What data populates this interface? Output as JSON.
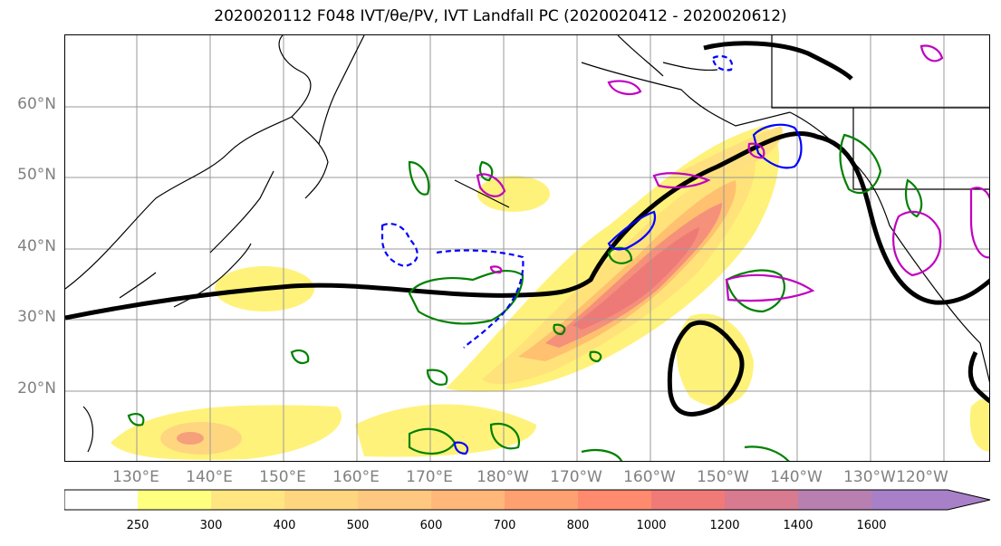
{
  "title": "2020020112 F048 IVT/θe/PV, IVT Landfall PC (2020020412 - 2020020612)",
  "lat_labels": [
    "60°N",
    "50°N",
    "40°N",
    "30°N",
    "20°N"
  ],
  "lon_labels": [
    "130°E",
    "140°E",
    "150°E",
    "160°E",
    "170°E",
    "180°W",
    "170°W",
    "160°W",
    "150°W",
    "140°W",
    "130°W",
    "120°W"
  ],
  "colorbar": {
    "ticks": [
      "250",
      "300",
      "400",
      "500",
      "600",
      "700",
      "800",
      "1000",
      "1200",
      "1400",
      "1600"
    ],
    "colors": [
      "#ffffff",
      "#ffff80",
      "#ffe680",
      "#ffd680",
      "#ffc880",
      "#ffb87a",
      "#ffa070",
      "#ff8a6e",
      "#f07a78",
      "#d87a90",
      "#b880b0",
      "#a880c8"
    ]
  },
  "colors": {
    "ivt_low": "#fff27a",
    "ivt_mid": "#ffc070",
    "ivt_high": "#f07a6e",
    "pc_line": "#000000",
    "theta_e": "#008000",
    "pv_positive": "#0000ff",
    "pv_other": "#c000c0",
    "coast": "#000000",
    "grid": "#999999"
  }
}
